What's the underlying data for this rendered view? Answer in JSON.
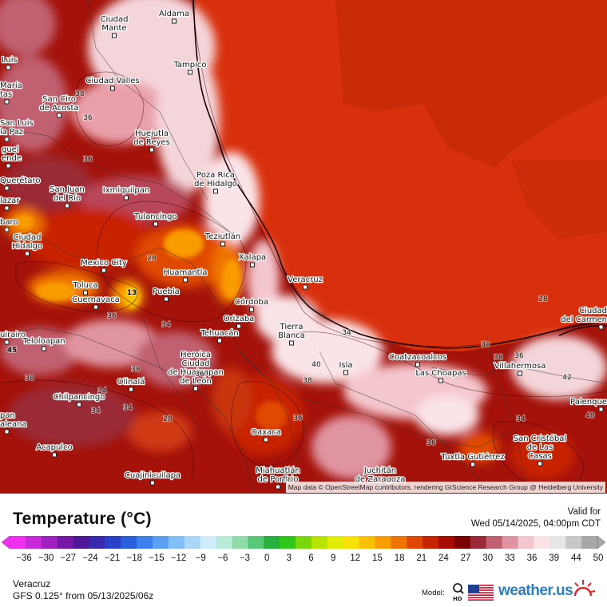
{
  "map": {
    "attribution": "Map data © OpenStreetMap contributors, rendering GIScience Research Group @ Heidelberg University",
    "cities": [
      {
        "name": "Ciudad",
        "name2": "Mante"
      },
      {
        "name": "Aldama"
      },
      {
        "name": "Tampico"
      },
      {
        "name": "Luis"
      },
      {
        "name": "María",
        "name2": "tas"
      },
      {
        "name": "Ciudad Valles"
      },
      {
        "name": "San Ciro",
        "name2": "de Acosta"
      },
      {
        "name": "San Luis",
        "name2": "la Paz"
      },
      {
        "name": "Huejutla",
        "name2": "de Reyes"
      },
      {
        "name": "guel",
        "name2": "ende"
      },
      {
        "name": "Poza Rica",
        "name2": "de Hidalgo"
      },
      {
        "name": "Querétaro"
      },
      {
        "name": "San Juan",
        "name2": "del Río"
      },
      {
        "name": "Ixmiquilpan"
      },
      {
        "name": "lazar"
      },
      {
        "name": "Tulancingo"
      },
      {
        "name": "baro"
      },
      {
        "name": "Ciudad",
        "name2": "Hidalgo"
      },
      {
        "name": "Teziutlán"
      },
      {
        "name": "Mexico City"
      },
      {
        "name": "Xalapa"
      },
      {
        "name": "Huamantla"
      },
      {
        "name": "Veracruz"
      },
      {
        "name": "Toluca"
      },
      {
        "name": "Cuernavaca"
      },
      {
        "name": "Puebla"
      },
      {
        "name": "Córdoba"
      },
      {
        "name": "Orizaba"
      },
      {
        "name": "Tierra",
        "name2": "Blanca"
      },
      {
        "name": "Ciudad",
        "name2": "del Carmen"
      },
      {
        "name": "uirairo"
      },
      {
        "name": "Teloloapan"
      },
      {
        "name": "Tehuacán"
      },
      {
        "name": "Heroica",
        "name2": "Ciudad",
        "name3": "de Huajuapan",
        "name4": "de León"
      },
      {
        "name": "Isla"
      },
      {
        "name": "Coatzacoalcos"
      },
      {
        "name": "Las Choapas"
      },
      {
        "name": "Villahermosa"
      },
      {
        "name": "Olinalá"
      },
      {
        "name": "Chilpancingo"
      },
      {
        "name": "Palenque"
      },
      {
        "name": "pan",
        "name2": "aleana"
      },
      {
        "name": "Oaxaca"
      },
      {
        "name": "San Cristóbal",
        "name2": "de Las",
        "name3": "Casas"
      },
      {
        "name": "Acapulco"
      },
      {
        "name": "Tuxtla Gutiérrez"
      },
      {
        "name": "Cuajinicuilapa"
      },
      {
        "name": "Miahuatlán",
        "name2": "de Porfirio"
      },
      {
        "name": "Juchitán",
        "name2": "de Zaragoza"
      }
    ],
    "contour_labels": [
      "38",
      "36",
      "36",
      "28",
      "36",
      "34",
      "40",
      "38",
      "34",
      "38",
      "36",
      "34",
      "42",
      "38",
      "36",
      "40",
      "36",
      "34",
      "28",
      "28",
      "30",
      "13",
      "45",
      "38",
      "34",
      "36",
      "34"
    ]
  },
  "legend": {
    "title": "Temperature (°C)",
    "valid_label": "Valid for",
    "valid_time": "Wed 05/14/2025, 04:00pm CDT",
    "ticks": [
      "-36",
      "-30",
      "-27",
      "-24",
      "-21",
      "-18",
      "-15",
      "-12",
      "-9",
      "-6",
      "-3",
      "0",
      "3",
      "6",
      "9",
      "12",
      "15",
      "18",
      "21",
      "24",
      "27",
      "30",
      "33",
      "36",
      "39",
      "44",
      "50"
    ],
    "colors": [
      "#f030f0",
      "#c828d8",
      "#a020c0",
      "#7818a8",
      "#501898",
      "#3a2ab0",
      "#2a40c8",
      "#2a60dc",
      "#3c80ec",
      "#5aa0f4",
      "#82bef8",
      "#aad6fa",
      "#d0ecfc",
      "#b8ecd8",
      "#90dca8",
      "#58c878",
      "#28b040",
      "#30c818",
      "#78d80c",
      "#b8e400",
      "#e0ec00",
      "#f8e000",
      "#f8c000",
      "#f89c00",
      "#f07400",
      "#e04800",
      "#c82400",
      "#a80c00",
      "#7c0000",
      "#9a2a36",
      "#c06070",
      "#e094a2",
      "#f4c6ce",
      "#fae4e8",
      "#e6e6e6",
      "#c8c8c8",
      "#a8a8a8"
    ]
  },
  "footer": {
    "location": "Veracruz",
    "model_run": "GFS 0.125° from  05/13/2025/06z",
    "model_label": "Model:",
    "hd_label": "HD",
    "brand": "weather.",
    "brand_tld": "us"
  }
}
